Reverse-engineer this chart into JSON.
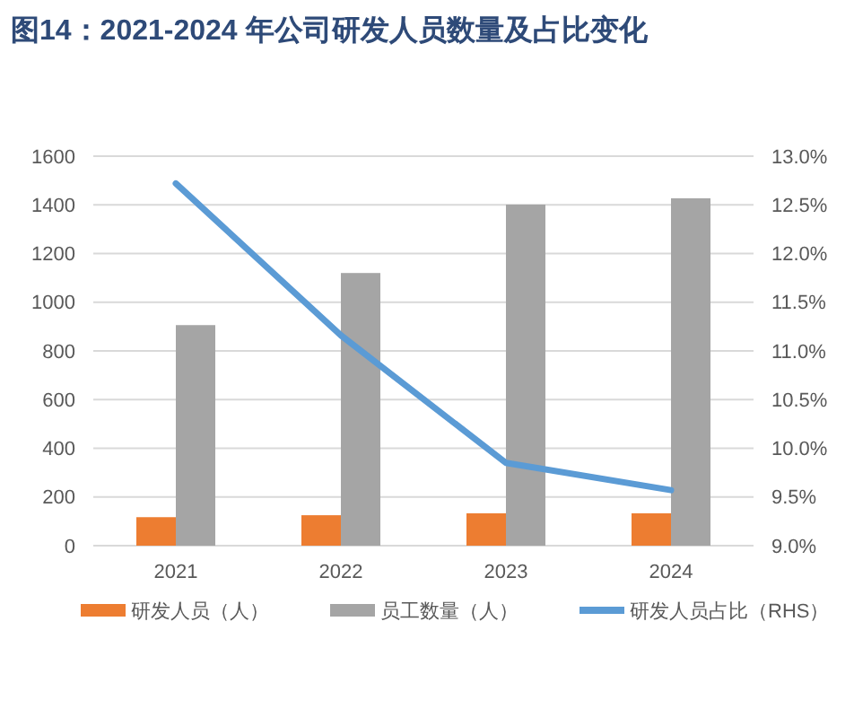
{
  "chart_data": {
    "type": "bar",
    "title": "图14：2021-2024 年公司研发人员数量及占比变化",
    "categories": [
      "2021",
      "2022",
      "2023",
      "2024"
    ],
    "series": [
      {
        "name": "研发人员（人）",
        "color": "#ed7d31",
        "values": [
          117,
          125,
          133,
          133
        ]
      },
      {
        "name": "员工数量（人）",
        "color": "#a5a5a5",
        "values": [
          906,
          1120,
          1401,
          1427
        ]
      },
      {
        "name": "研发人员占比（RHS）",
        "color": "#5b9bd5",
        "type": "line",
        "axis": "y2",
        "values": [
          12.72,
          11.16,
          9.85,
          9.57
        ]
      }
    ],
    "ylim": [
      0,
      1600
    ],
    "yticks": [
      0,
      200,
      400,
      600,
      800,
      1000,
      1200,
      1400,
      1600
    ],
    "y2lim": [
      9,
      13
    ],
    "y2ticks": [
      {
        "value": 9,
        "label": "9.0%"
      },
      {
        "value": 9.5,
        "label": "9.5%"
      },
      {
        "value": 10,
        "label": "10.0%"
      },
      {
        "value": 10.5,
        "label": "10.5%"
      },
      {
        "value": 11,
        "label": "11.0%"
      },
      {
        "value": 11.5,
        "label": "11.5%"
      },
      {
        "value": 12,
        "label": "12.0%"
      },
      {
        "value": 12.5,
        "label": "12.5%"
      },
      {
        "value": 13,
        "label": "13.0%"
      }
    ],
    "grid": "y",
    "legend": "bottom"
  }
}
